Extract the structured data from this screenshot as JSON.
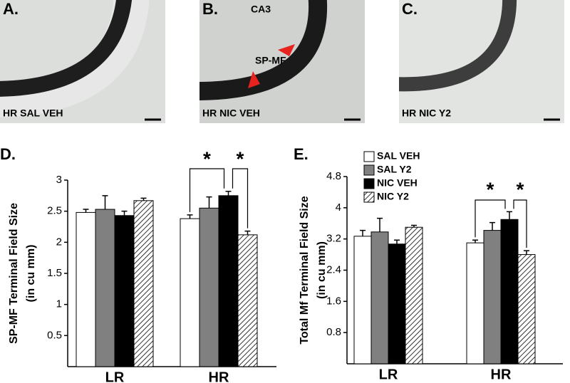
{
  "panels": [
    {
      "letter": "A.",
      "caption": "HR SAL VEH"
    },
    {
      "letter": "B.",
      "caption": "HR NIC VEH",
      "labels": [
        "CA3",
        "SP-MF"
      ]
    },
    {
      "letter": "C.",
      "caption": "HR NIC Y2"
    }
  ],
  "chart_data": [
    {
      "type": "bar",
      "panel_label": "D.",
      "ylabel": [
        "SP-MF Terminal Field Size",
        "(in cu mm)"
      ],
      "categories": [
        "LR",
        "HR"
      ],
      "series": [
        {
          "color": "#ffffff",
          "values": [
            2.48,
            2.38
          ],
          "errors": [
            0.05,
            0.06
          ]
        },
        {
          "color": "#808080",
          "values": [
            2.53,
            2.55
          ],
          "errors": [
            0.22,
            0.18
          ]
        },
        {
          "color": "#000000",
          "values": [
            2.43,
            2.75
          ],
          "errors": [
            0.07,
            0.07
          ]
        },
        {
          "color": "#ffffff",
          "hatch": true,
          "values": [
            2.67,
            2.12
          ],
          "errors": [
            0.04,
            0.06
          ]
        }
      ],
      "ylim": [
        0,
        3
      ],
      "yticks": [
        0.5,
        1,
        1.5,
        2,
        2.5,
        3
      ],
      "annotations": [
        "*",
        "*"
      ],
      "legend": false
    },
    {
      "type": "bar",
      "panel_label": "E.",
      "ylabel": [
        "Total Mf Terminal Field Size",
        "(in cu mm)"
      ],
      "categories": [
        "LR",
        "HR"
      ],
      "series": [
        {
          "name": "SAL VEH",
          "color": "#ffffff",
          "values": [
            3.27,
            3.1
          ],
          "errors": [
            0.15,
            0.07
          ]
        },
        {
          "name": "SAL Y2",
          "color": "#808080",
          "values": [
            3.38,
            3.42
          ],
          "errors": [
            0.35,
            0.2
          ]
        },
        {
          "name": "NIC VEH",
          "color": "#000000",
          "values": [
            3.07,
            3.7
          ],
          "errors": [
            0.1,
            0.2
          ]
        },
        {
          "name": "NIC Y2",
          "color": "#ffffff",
          "hatch": true,
          "values": [
            3.5,
            2.8
          ],
          "errors": [
            0.05,
            0.1
          ]
        }
      ],
      "ylim": [
        0,
        4.8
      ],
      "yticks": [
        0.8,
        1.6,
        2.4,
        3.2,
        4,
        4.8
      ],
      "annotations": [
        "*",
        "*"
      ],
      "legend": "upper left"
    }
  ]
}
